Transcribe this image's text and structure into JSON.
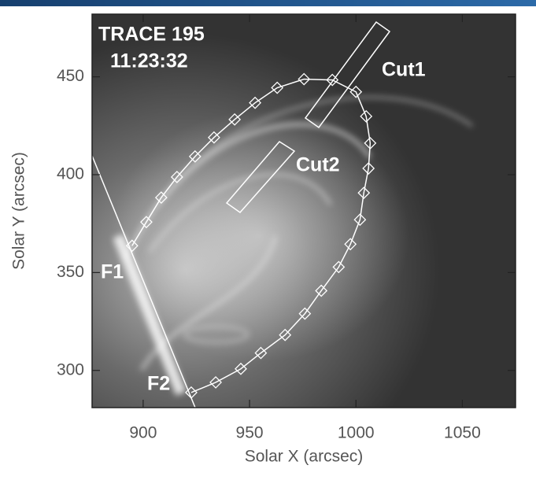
{
  "chart_data": {
    "type": "scatter",
    "title": "TRACE 195",
    "subtitle": "11:23:32",
    "annotations": [
      "Cut1",
      "Cut2",
      "F1",
      "F2"
    ],
    "xlabel": "Solar X (arcsec)",
    "ylabel": "Solar Y (arcsec)",
    "x": [
      894.8,
      901.5,
      908.5,
      915.9,
      924.4,
      933.3,
      943.0,
      952.6,
      963.0,
      975.6,
      988.9,
      1000.0,
      1004.8,
      1006.7,
      1005.9,
      1003.7,
      1001.9,
      997.4,
      991.9,
      983.7,
      976.0,
      966.7,
      955.3,
      945.9,
      934.1,
      922.6
    ],
    "values": [
      363.7,
      375.8,
      388.3,
      398.8,
      409.3,
      419.0,
      428.2,
      436.7,
      444.4,
      448.8,
      448.4,
      442.3,
      429.8,
      416.1,
      403.2,
      390.7,
      377.0,
      364.5,
      352.8,
      340.7,
      329.0,
      318.1,
      308.9,
      300.8,
      293.9,
      288.7
    ],
    "color": "#ffffff",
    "xlim": [
      876,
      1075
    ],
    "ylim": [
      281,
      482
    ],
    "xticks": [
      900,
      950,
      1000,
      1050
    ],
    "yticks": [
      300,
      350,
      400,
      450
    ]
  }
}
